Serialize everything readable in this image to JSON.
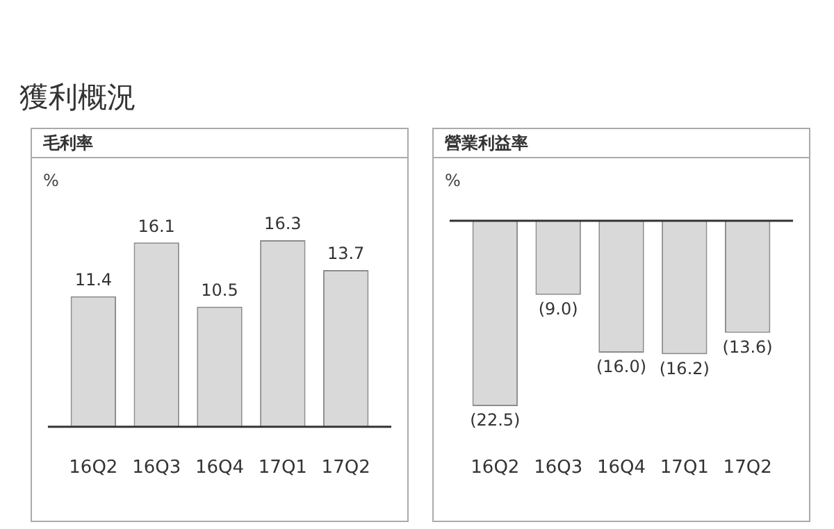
{
  "chart_data": [
    {
      "type": "bar",
      "title": "毛利率",
      "ylabel": "%",
      "annotations": [
        "獲利概況"
      ],
      "categories": [
        "16Q2",
        "16Q3",
        "16Q4",
        "17Q1",
        "17Q2"
      ],
      "values": [
        11.4,
        16.1,
        10.5,
        16.3,
        13.7
      ],
      "color": "#d9d9d9",
      "data_labels": true,
      "grid": false,
      "legend": false
    },
    {
      "type": "bar",
      "title": "營業利益率",
      "ylabel": "%",
      "categories": [
        "16Q2",
        "16Q3",
        "16Q4",
        "17Q1",
        "17Q2"
      ],
      "values": [
        -22.5,
        -9.0,
        -16.0,
        -16.2,
        -13.6
      ],
      "value_labels": [
        "(22.5)",
        "(9.0)",
        "(16.0)",
        "(16.2)",
        "(13.6)"
      ],
      "color": "#d9d9d9",
      "grid": false,
      "legend": false
    }
  ]
}
